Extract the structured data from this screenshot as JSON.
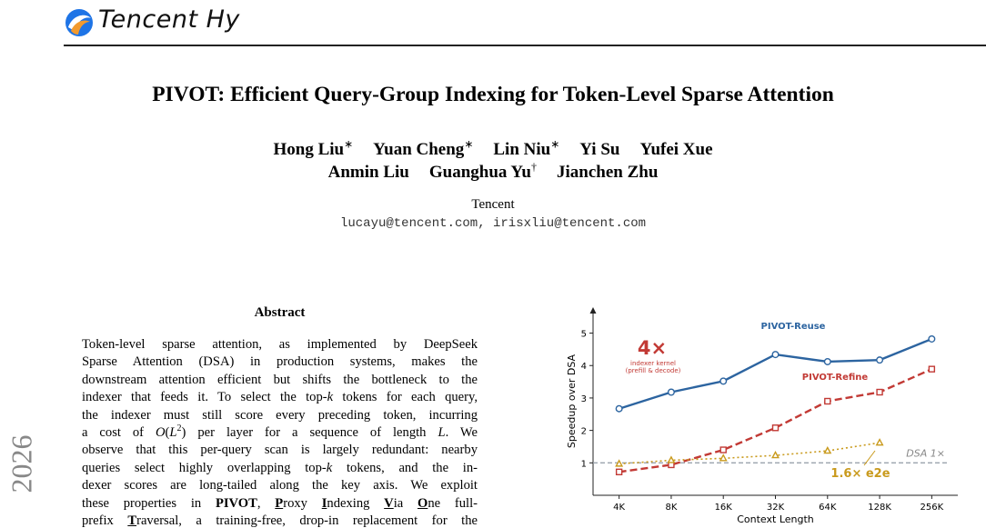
{
  "header": {
    "logo": "Tencent Hy"
  },
  "title": "PIVOT: Efficient Query-Group Indexing for Token-Level Sparse Attention",
  "authors": [
    [
      {
        "name": "Hong Liu",
        "mark": "∗"
      },
      {
        "name": "Yuan Cheng",
        "mark": "∗"
      },
      {
        "name": "Lin Niu",
        "mark": "∗"
      },
      {
        "name": "Yi Su"
      },
      {
        "name": "Yufei Xue"
      }
    ],
    [
      {
        "name": "Anmin Liu"
      },
      {
        "name": "Guanghua Yu",
        "mark": "†"
      },
      {
        "name": "Jianchen Zhu"
      }
    ]
  ],
  "affiliation": "Tencent",
  "emails": "lucayu@tencent.com, irisxliu@tencent.com",
  "side_stamp": "2026",
  "abstract": {
    "heading": "Abstract",
    "lines": [
      [
        "Token-level sparse attention, as implemented by DeepSeek"
      ],
      [
        "Sparse Attention (DSA) in production systems, makes the"
      ],
      [
        "downstream attention efficient but shifts the bottleneck to the"
      ],
      [
        "indexer that feeds it. To select the top-",
        {
          "text": "k",
          "style": "italic"
        },
        " tokens for each query,"
      ],
      [
        "the indexer must still score every preceding token, incurring"
      ],
      [
        "a cost of ",
        {
          "text": "O",
          "style": "italic"
        },
        "(",
        {
          "text": "L",
          "style": "italic"
        },
        {
          "text": "2",
          "style": "sup"
        },
        ") per layer for a sequence of length ",
        {
          "text": "L",
          "style": "italic"
        },
        ". We"
      ],
      [
        "observe that this per-query scan is largely redundant: nearby"
      ],
      [
        "queries select highly overlapping top-",
        {
          "text": "k",
          "style": "italic"
        },
        " tokens, and the in-"
      ],
      [
        "dexer scores are long-tailed along the key axis. We exploit"
      ],
      [
        "these properties in ",
        {
          "text": "PIVOT",
          "style": "bold"
        },
        ", ",
        {
          "text": "P",
          "style": "bold-underline"
        },
        "roxy ",
        {
          "text": "I",
          "style": "bold-underline"
        },
        "ndexing ",
        {
          "text": "V",
          "style": "bold-underline"
        },
        "ia ",
        {
          "text": "O",
          "style": "bold-underline"
        },
        "ne full-"
      ],
      [
        "prefix ",
        {
          "text": "T",
          "style": "bold-underline"
        },
        "raversal, a training-free, drop-in replacement for the"
      ]
    ]
  },
  "chart_data": {
    "type": "line",
    "x_label": "Context Length",
    "y_label": "Speedup over DSA",
    "categories": [
      "4K",
      "8K",
      "16K",
      "32K",
      "64K",
      "128K",
      "256K"
    ],
    "series": [
      {
        "name": "PIVOT-Reuse",
        "color": "#2c64a0",
        "marker": "circle",
        "dash": "solid",
        "values": [
          2.67,
          3.18,
          3.52,
          4.34,
          4.12,
          4.17,
          4.82
        ]
      },
      {
        "name": "PIVOT-Refine",
        "color": "#c23a35",
        "marker": "square",
        "dash": "dashed",
        "values": [
          0.72,
          0.94,
          1.4,
          2.08,
          2.9,
          3.18,
          3.89
        ]
      },
      {
        "color": "#c99a1c",
        "marker": "triangle",
        "dash": "dotted",
        "values": [
          0.97,
          1.08,
          1.14,
          1.23,
          1.37,
          1.62,
          null
        ]
      }
    ],
    "ylim": [
      0,
      5.8
    ],
    "yticks": [
      1,
      2,
      3,
      4,
      5
    ],
    "reference_line": {
      "value": 1,
      "label": "DSA 1×"
    },
    "annotations": [
      "4×",
      "indexer kernel",
      "(prefill & decode)",
      "1.6× e2e"
    ]
  }
}
